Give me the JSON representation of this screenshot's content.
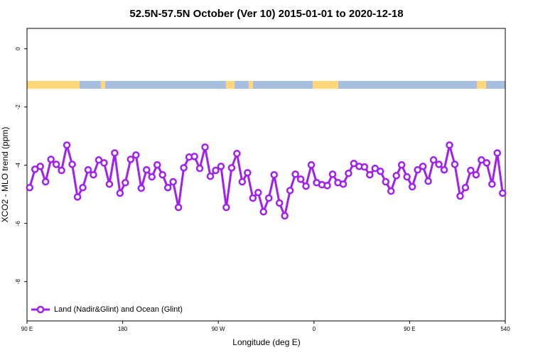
{
  "chart_data": {
    "type": "line",
    "title": "52.5N-57.5N October (Ver 10)   2015-01-01 to 2020-12-18",
    "xlabel": "Longitude (deg E)",
    "ylabel": "XCO2 - MLO trend (ppm)",
    "x": [
      92.5,
      97.5,
      102.5,
      107.5,
      112.5,
      117.5,
      122.5,
      127.5,
      132.5,
      137.5,
      142.5,
      147.5,
      152.5,
      157.5,
      162.5,
      167.5,
      172.5,
      177.5,
      182.5,
      187.5,
      192.5,
      197.5,
      202.5,
      207.5,
      212.5,
      217.5,
      222.5,
      227.5,
      232.5,
      237.5,
      242.5,
      247.5,
      252.5,
      257.5,
      262.5,
      267.5,
      272.5,
      277.5,
      282.5,
      287.5,
      292.5,
      297.5,
      302.5,
      307.5,
      312.5,
      317.5,
      322.5,
      327.5,
      332.5,
      337.5,
      342.5,
      347.5,
      352.5,
      357.5,
      362.5,
      367.5,
      372.5,
      377.5,
      382.5,
      387.5,
      392.5,
      397.5,
      402.5,
      407.5,
      412.5,
      417.5,
      422.5,
      427.5,
      432.5,
      437.5,
      442.5,
      447.5,
      452.5,
      457.5,
      462.5,
      467.5,
      472.5,
      477.5,
      482.5,
      487.5,
      492.5,
      497.5,
      502.5,
      507.5,
      512.5,
      517.5,
      522.5,
      527.5,
      532.5,
      537.5
    ],
    "series": [
      {
        "name": "Land (Nadir&Glint) and Ocean (Glint)",
        "color": "#a020f0",
        "values": [
          -4.77,
          -4.14,
          -4.04,
          -4.57,
          -3.8,
          -3.97,
          -4.18,
          -3.31,
          -3.97,
          -5.09,
          -4.77,
          -4.16,
          -4.33,
          -3.82,
          -3.92,
          -4.65,
          -3.58,
          -4.96,
          -4.6,
          -3.8,
          -3.65,
          -4.79,
          -4.16,
          -4.4,
          -3.99,
          -4.33,
          -4.77,
          -4.57,
          -5.45,
          -4.09,
          -3.72,
          -3.7,
          -4.11,
          -3.38,
          -4.38,
          -4.18,
          -4.04,
          -5.45,
          -4.09,
          -3.6,
          -4.57,
          -4.26,
          -5.13,
          -4.94,
          -5.6,
          -5.13,
          -4.33,
          -5.3,
          -5.74,
          -4.87,
          -4.31,
          -4.48,
          -4.72,
          -3.99,
          -4.6,
          -4.67,
          -4.7,
          -4.31,
          -4.6,
          -4.65,
          -4.28,
          -3.94,
          -4.04,
          -4.06,
          -4.33,
          -4.11,
          -4.21,
          -4.57,
          -4.89,
          -4.36,
          -3.99,
          -4.4,
          -4.74,
          -4.16,
          -4.04,
          -4.55,
          -3.82,
          -3.97,
          -4.16,
          -3.31,
          -3.97,
          -5.06,
          -4.77,
          -4.18,
          -4.33,
          -3.82,
          -3.92,
          -4.65,
          -3.58,
          -4.96
        ]
      }
    ],
    "xlim": [
      90,
      540
    ],
    "xticks": [
      {
        "value": 90,
        "label": "90 E"
      },
      180,
      {
        "value": 270,
        "label": "90 W"
      },
      {
        "value": 360,
        "label": "0"
      },
      {
        "value": 450,
        "label": "90 E"
      },
      540
    ],
    "ylim": [
      -9.35,
      0.7
    ],
    "yticks": [
      0,
      -2,
      -4,
      -6,
      -8
    ],
    "legend": "lower left"
  }
}
